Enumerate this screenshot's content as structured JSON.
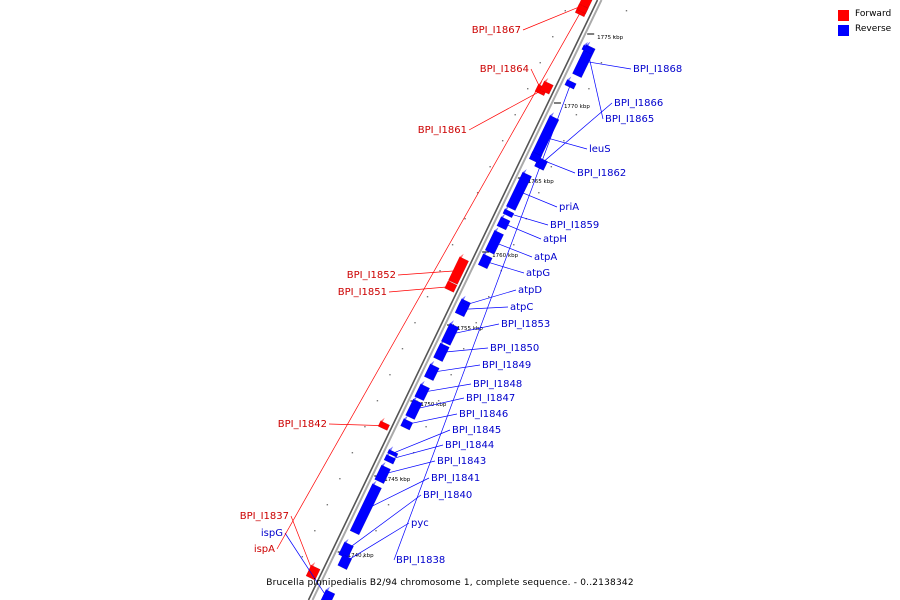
{
  "colors": {
    "forward": "#ff0000",
    "reverse": "#0000ff",
    "forward_label": "#cc0000",
    "reverse_label": "#0000cc",
    "axis": "#888888"
  },
  "legend": {
    "forward": "Forward",
    "reverse": "Reverse"
  },
  "caption": "Brucella pinnipedialis B2/94 chromosome 1, complete sequence. - 0..2138342",
  "ticks": [
    "1775 kbp",
    "1770 kbp",
    "1765 kbp",
    "1760 kbp",
    "1755 kbp",
    "1750 kbp",
    "1745 kbp",
    "1740 kbp"
  ],
  "genes": [
    {
      "name": "BPI_I1867",
      "strand": "forward"
    },
    {
      "name": "BPI_I1868",
      "strand": "reverse"
    },
    {
      "name": "BPI_I1864",
      "strand": "forward"
    },
    {
      "name": "BPI_I1866",
      "strand": "reverse"
    },
    {
      "name": "BPI_I1865",
      "strand": "reverse"
    },
    {
      "name": "BPI_I1861",
      "strand": "forward"
    },
    {
      "name": "leuS",
      "strand": "reverse"
    },
    {
      "name": "BPI_I1862",
      "strand": "reverse"
    },
    {
      "name": "priA",
      "strand": "reverse"
    },
    {
      "name": "BPI_I1859",
      "strand": "reverse"
    },
    {
      "name": "atpH",
      "strand": "reverse"
    },
    {
      "name": "atpA",
      "strand": "reverse"
    },
    {
      "name": "atpG",
      "strand": "reverse"
    },
    {
      "name": "BPI_I1852",
      "strand": "forward"
    },
    {
      "name": "BPI_I1851",
      "strand": "forward"
    },
    {
      "name": "atpD",
      "strand": "reverse"
    },
    {
      "name": "atpC",
      "strand": "reverse"
    },
    {
      "name": "BPI_I1853",
      "strand": "reverse"
    },
    {
      "name": "BPI_I1850",
      "strand": "reverse"
    },
    {
      "name": "BPI_I1849",
      "strand": "reverse"
    },
    {
      "name": "BPI_I1848",
      "strand": "reverse"
    },
    {
      "name": "BPI_I1847",
      "strand": "reverse"
    },
    {
      "name": "BPI_I1846",
      "strand": "reverse"
    },
    {
      "name": "BPI_I1842",
      "strand": "forward"
    },
    {
      "name": "BPI_I1845",
      "strand": "reverse"
    },
    {
      "name": "BPI_I1844",
      "strand": "reverse"
    },
    {
      "name": "BPI_I1843",
      "strand": "reverse"
    },
    {
      "name": "BPI_I1841",
      "strand": "reverse"
    },
    {
      "name": "BPI_I1840",
      "strand": "reverse"
    },
    {
      "name": "pyc",
      "strand": "reverse"
    },
    {
      "name": "BPI_I1837",
      "strand": "forward"
    },
    {
      "name": "ispG",
      "strand": "reverse"
    },
    {
      "name": "ispA",
      "strand": "forward"
    },
    {
      "name": "BPI_I1838",
      "strand": "reverse"
    }
  ]
}
